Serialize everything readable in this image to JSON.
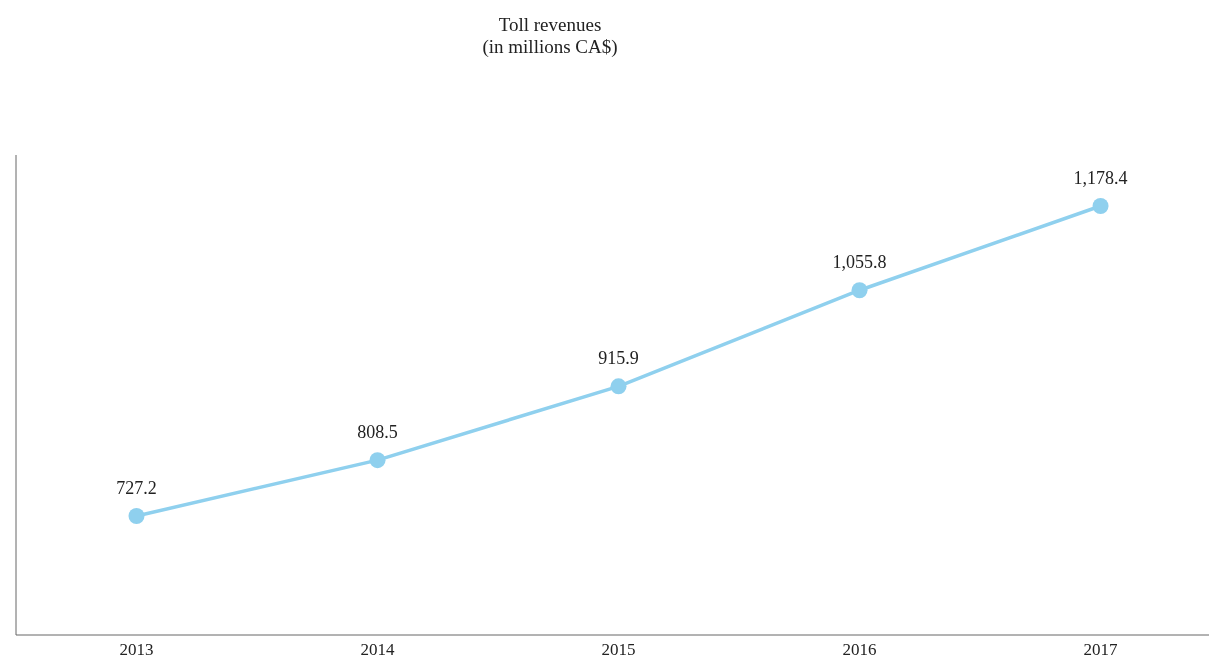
{
  "chart_data": {
    "type": "line",
    "title": "Toll revenues",
    "subtitle": "(in millions CA$)",
    "categories": [
      "2013",
      "2014",
      "2015",
      "2016",
      "2017"
    ],
    "series": [
      {
        "color": "#8fd0ee",
        "values": [
          727.2,
          808.5,
          915.9,
          1055.8,
          1178.4
        ],
        "value_labels": [
          "727.2",
          "808.5",
          "915.9",
          "1,055.8",
          "1,178.4"
        ]
      }
    ],
    "marker": "circle",
    "grid": false,
    "legend": false
  }
}
